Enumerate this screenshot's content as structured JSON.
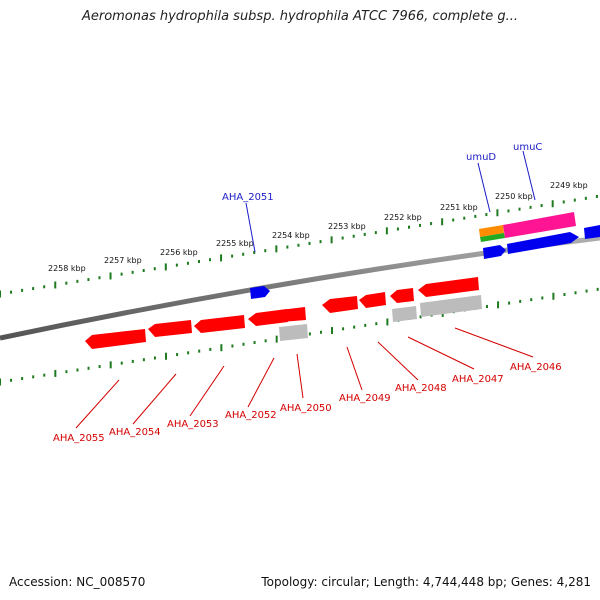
{
  "title": "Aeromonas hydrophila subsp. hydrophila ATCC 7966, complete g...",
  "footer": {
    "accession": "Accession: NC_008570",
    "topology": "Topology: circular; Length: 4,744,448 bp; Genes: 4,281"
  },
  "scale_ticks": [
    "2258 kbp",
    "2257 kbp",
    "2256 kbp",
    "2255 kbp",
    "2254 kbp",
    "2253 kbp",
    "2252 kbp",
    "2251 kbp",
    "2250 kbp",
    "2249 kbp"
  ],
  "lower_labels": [
    "AHA_2055",
    "AHA_2054",
    "AHA_2053",
    "AHA_2052",
    "AHA_2050",
    "AHA_2049",
    "AHA_2048",
    "AHA_2047",
    "AHA_2046"
  ],
  "upper_labels": [
    "AHA_2051",
    "umuD",
    "umuC"
  ],
  "colors": {
    "red_gene": "#ff0000",
    "blue_gene": "#0000ee",
    "gray_gene": "#bcbcbc",
    "pink_gene": "#ff1493",
    "orange_gene": "#ff8c00",
    "green_gene": "#22aa22",
    "green_ticks": "#1e7a1e",
    "backbone": "#777777"
  }
}
